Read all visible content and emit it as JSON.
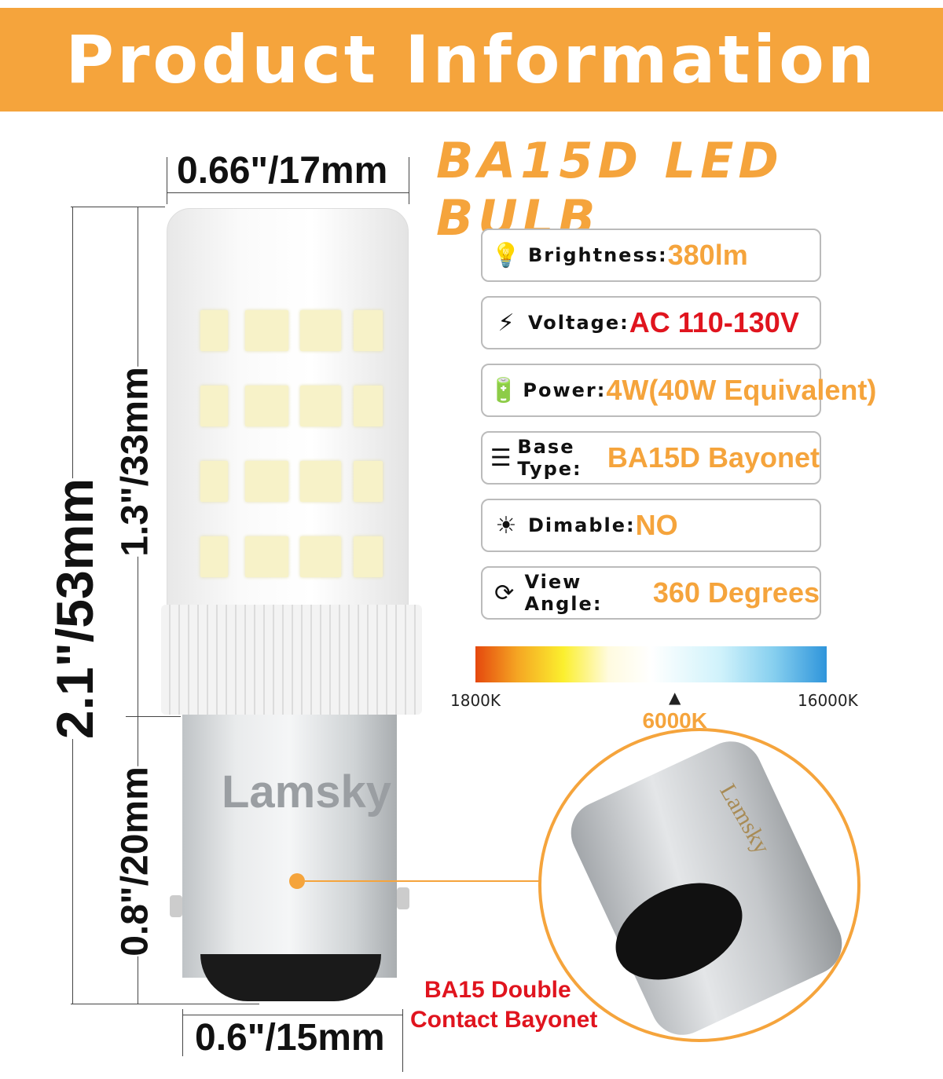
{
  "header": {
    "title": "Product Information"
  },
  "subtitle": "BA15D LED BULB",
  "dimensions": {
    "top_width": "0.66\"/17mm",
    "total_height": "2.1\"/53mm",
    "glass_height": "1.3\"/33mm",
    "base_height": "0.8\"/20mm",
    "base_width": "0.6\"/15mm"
  },
  "bulb": {
    "brand": "Lamsky"
  },
  "specs": [
    {
      "icon": "light-bulb-icon",
      "label": "Brightness:",
      "value": "380lm",
      "color": "#F5A43C"
    },
    {
      "icon": "lightning-bolt-icon",
      "label": "Voltage:",
      "value": "AC 110-130V",
      "color": "#E0141E"
    },
    {
      "icon": "battery-leaf-icon",
      "label": "Power:",
      "value": "4W(40W Equivalent)",
      "color": "#F5A43C"
    },
    {
      "icon": "bulb-base-icon",
      "label": "Base Type:",
      "value": "BA15D Bayonet",
      "color": "#F5A43C"
    },
    {
      "icon": "dimmer-sun-icon",
      "label": "Dimable:",
      "value": "NO",
      "color": "#F5A43C"
    },
    {
      "icon": "rotate-360-icon",
      "label": "View Angle:",
      "value": "360 Degrees",
      "color": "#F5A43C"
    }
  ],
  "color_temp": {
    "min": "1800K",
    "max": "16000K",
    "selected": "6000K",
    "selected_value": 6000
  },
  "callout": {
    "line1": "BA15 Double",
    "line2": "Contact Bayonet",
    "zoom_brand": "Lamsky"
  },
  "colors": {
    "accent": "#F5A43C",
    "red": "#E0141E"
  }
}
